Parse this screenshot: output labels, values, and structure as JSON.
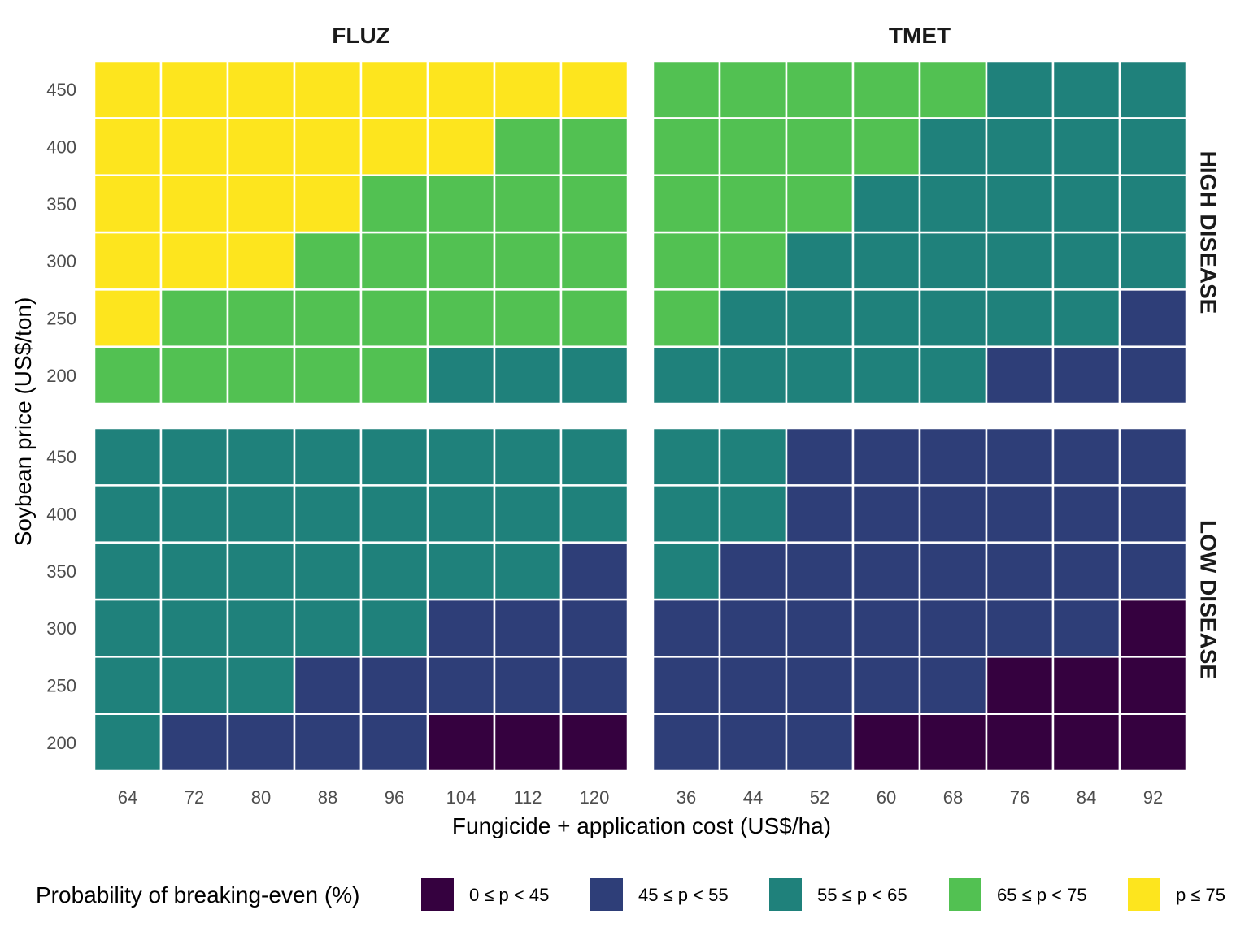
{
  "chart_data": {
    "type": "heatmap",
    "xlabel": "Fungicide + application cost (US$/ha)",
    "ylabel": "Soybean price (US$/ton)",
    "y": [
      200,
      250,
      300,
      350,
      400,
      450
    ],
    "colors": [
      "#35013f",
      "#2e3e78",
      "#1f817b",
      "#52c152",
      "#fde51e"
    ],
    "legend": {
      "title": "Probability of breaking-even (%)",
      "position": "bottom",
      "items": [
        "0 ≤ p < 45",
        "45 ≤ p < 55",
        "55 ≤ p < 65",
        "65 ≤ p < 75",
        "p ≤ 75"
      ]
    },
    "columns": [
      "FLUZ",
      "TMET"
    ],
    "rows": [
      "HIGH DISEASE",
      "LOW DISEASE"
    ],
    "panels": [
      {
        "column": "FLUZ",
        "row": "HIGH DISEASE",
        "x": [
          64,
          72,
          80,
          88,
          96,
          104,
          112,
          120
        ],
        "grid": [
          [
            3,
            3,
            3,
            3,
            3,
            2,
            2,
            2
          ],
          [
            4,
            3,
            3,
            3,
            3,
            3,
            3,
            3
          ],
          [
            4,
            4,
            4,
            3,
            3,
            3,
            3,
            3
          ],
          [
            4,
            4,
            4,
            4,
            3,
            3,
            3,
            3
          ],
          [
            4,
            4,
            4,
            4,
            4,
            4,
            3,
            3
          ],
          [
            4,
            4,
            4,
            4,
            4,
            4,
            4,
            4
          ]
        ]
      },
      {
        "column": "TMET",
        "row": "HIGH DISEASE",
        "x": [
          36,
          44,
          52,
          60,
          68,
          76,
          84,
          92
        ],
        "grid": [
          [
            2,
            2,
            2,
            2,
            2,
            1,
            1,
            1
          ],
          [
            3,
            2,
            2,
            2,
            2,
            2,
            2,
            1
          ],
          [
            3,
            3,
            2,
            2,
            2,
            2,
            2,
            2
          ],
          [
            3,
            3,
            3,
            2,
            2,
            2,
            2,
            2
          ],
          [
            3,
            3,
            3,
            3,
            2,
            2,
            2,
            2
          ],
          [
            3,
            3,
            3,
            3,
            3,
            2,
            2,
            2
          ]
        ]
      },
      {
        "column": "FLUZ",
        "row": "LOW DISEASE",
        "x": [
          64,
          72,
          80,
          88,
          96,
          104,
          112,
          120
        ],
        "grid": [
          [
            2,
            1,
            1,
            1,
            1,
            0,
            0,
            0
          ],
          [
            2,
            2,
            2,
            1,
            1,
            1,
            1,
            1
          ],
          [
            2,
            2,
            2,
            2,
            2,
            1,
            1,
            1
          ],
          [
            2,
            2,
            2,
            2,
            2,
            2,
            2,
            1
          ],
          [
            2,
            2,
            2,
            2,
            2,
            2,
            2,
            2
          ],
          [
            2,
            2,
            2,
            2,
            2,
            2,
            2,
            2
          ]
        ]
      },
      {
        "column": "TMET",
        "row": "LOW DISEASE",
        "x": [
          36,
          44,
          52,
          60,
          68,
          76,
          84,
          92
        ],
        "grid": [
          [
            1,
            1,
            1,
            0,
            0,
            0,
            0,
            0
          ],
          [
            1,
            1,
            1,
            1,
            1,
            0,
            0,
            0
          ],
          [
            1,
            1,
            1,
            1,
            1,
            1,
            1,
            0
          ],
          [
            2,
            1,
            1,
            1,
            1,
            1,
            1,
            1
          ],
          [
            2,
            2,
            1,
            1,
            1,
            1,
            1,
            1
          ],
          [
            2,
            2,
            1,
            1,
            1,
            1,
            1,
            1
          ]
        ]
      }
    ]
  }
}
